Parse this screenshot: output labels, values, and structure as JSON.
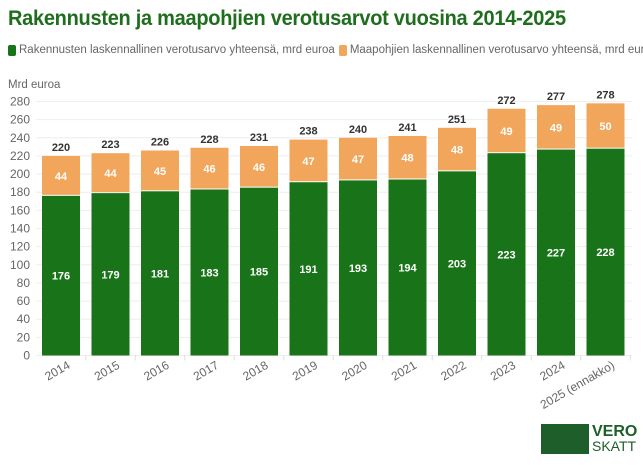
{
  "colors": {
    "building": "#197319",
    "land": "#f2a65c",
    "title": "#1e6e1e"
  },
  "chart_data": {
    "type": "bar",
    "stacked": true,
    "title": "Rakennusten ja maapohjien verotusarvot vuosina 2014-2025",
    "ylabel": "Mrd euroa",
    "ylim": [
      0,
      280
    ],
    "yticks": [
      0,
      20,
      40,
      60,
      80,
      100,
      120,
      140,
      160,
      180,
      200,
      220,
      240,
      260,
      280
    ],
    "grid": true,
    "legend_position": "top",
    "categories": [
      "2014",
      "2015",
      "2016",
      "2017",
      "2018",
      "2019",
      "2020",
      "2021",
      "2022",
      "2023",
      "2024",
      "2025 (ennakko)"
    ],
    "series": [
      {
        "name": "Rakennusten laskennallinen verotusarvo yhteensä, mrd euroa",
        "values": [
          176,
          179,
          181,
          183,
          185,
          191,
          193,
          194,
          203,
          223,
          227,
          228
        ]
      },
      {
        "name": "Maapohjien laskennallinen verotusarvo yhteensä, mrd euroa",
        "values": [
          44,
          44,
          45,
          46,
          46,
          47,
          47,
          48,
          48,
          49,
          49,
          50
        ]
      }
    ],
    "totals": [
      220,
      223,
      226,
      228,
      231,
      238,
      240,
      241,
      251,
      272,
      277,
      278
    ]
  },
  "logo": {
    "line1": "VERO",
    "line2": "SKATT"
  }
}
